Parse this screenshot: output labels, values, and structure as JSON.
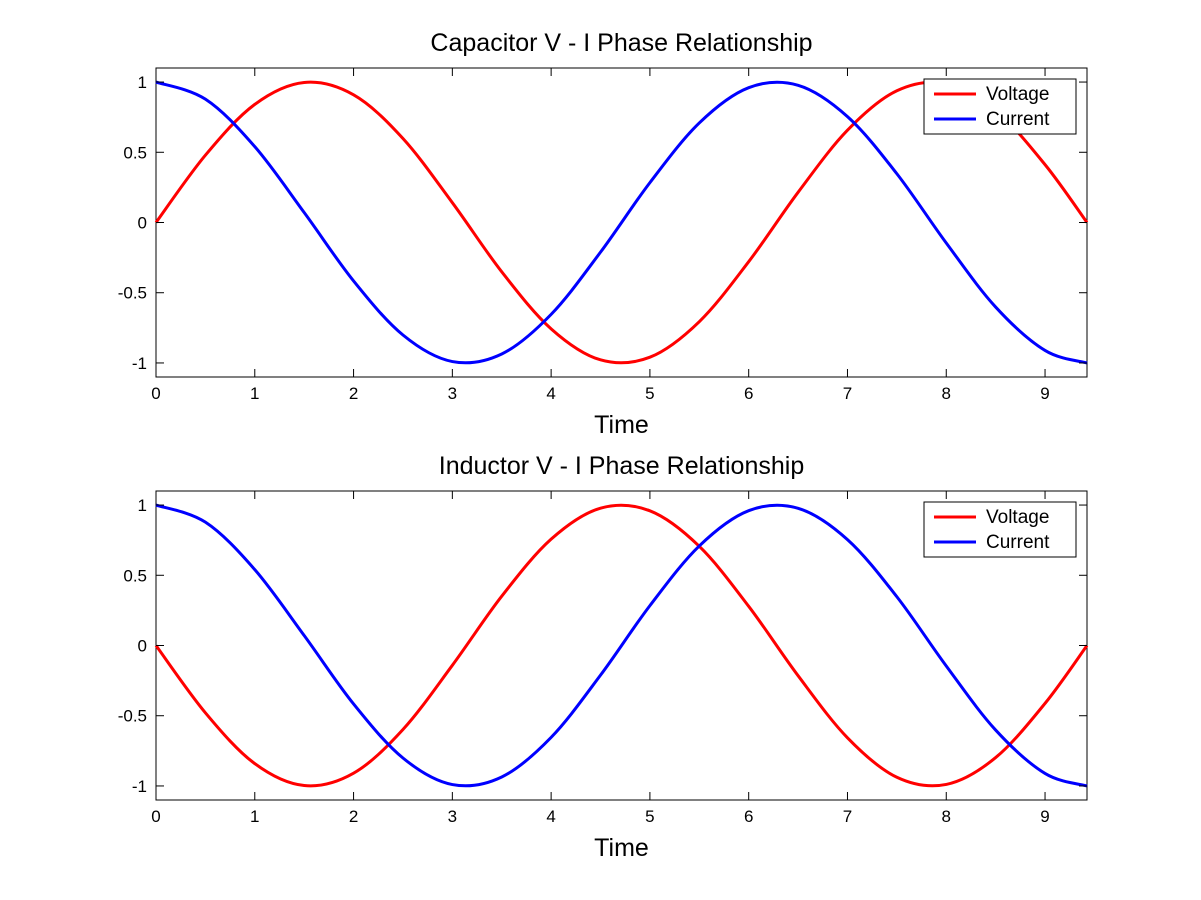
{
  "chart_data": [
    {
      "type": "line",
      "title": "Capacitor V - I Phase Relationship",
      "xlabel": "Time",
      "ylabel": "",
      "xlim": [
        0,
        9.4248
      ],
      "ylim": [
        -1.1,
        1.1
      ],
      "xticks": [
        0,
        1,
        2,
        3,
        4,
        5,
        6,
        7,
        8,
        9
      ],
      "yticks": [
        -1,
        -0.5,
        0,
        0.5,
        1
      ],
      "ytick_labels": [
        "-1",
        "-0.5",
        "0",
        "0.5",
        "1"
      ],
      "grid": false,
      "legend_position": "top-right",
      "x": [
        0,
        0.5,
        1,
        1.5,
        2,
        2.5,
        3,
        3.5,
        4,
        4.5,
        5,
        5.5,
        6,
        6.5,
        7,
        7.5,
        8,
        8.5,
        9,
        9.4248
      ],
      "series": [
        {
          "name": "Voltage",
          "color": "#ff0000",
          "values": [
            0,
            0.479,
            0.841,
            0.997,
            0.909,
            0.598,
            0.141,
            -0.351,
            -0.757,
            -0.978,
            -0.959,
            -0.706,
            -0.279,
            0.215,
            0.657,
            0.938,
            0.989,
            0.798,
            0.412,
            0
          ]
        },
        {
          "name": "Current",
          "color": "#0000ff",
          "values": [
            1,
            0.878,
            0.54,
            0.071,
            -0.416,
            -0.801,
            -0.99,
            -0.936,
            -0.654,
            -0.211,
            0.284,
            0.709,
            0.96,
            0.977,
            0.754,
            0.347,
            -0.146,
            -0.602,
            -0.911,
            -1
          ]
        }
      ]
    },
    {
      "type": "line",
      "title": "Inductor V - I Phase Relationship",
      "xlabel": "Time",
      "ylabel": "",
      "xlim": [
        0,
        9.4248
      ],
      "ylim": [
        -1.1,
        1.1
      ],
      "xticks": [
        0,
        1,
        2,
        3,
        4,
        5,
        6,
        7,
        8,
        9
      ],
      "yticks": [
        -1,
        -0.5,
        0,
        0.5,
        1
      ],
      "ytick_labels": [
        "-1",
        "-0.5",
        "0",
        "0.5",
        "1"
      ],
      "grid": false,
      "legend_position": "top-right",
      "x": [
        0,
        0.5,
        1,
        1.5,
        2,
        2.5,
        3,
        3.5,
        4,
        4.5,
        5,
        5.5,
        6,
        6.5,
        7,
        7.5,
        8,
        8.5,
        9,
        9.4248
      ],
      "series": [
        {
          "name": "Voltage",
          "color": "#ff0000",
          "values": [
            0,
            -0.479,
            -0.841,
            -0.997,
            -0.909,
            -0.598,
            -0.141,
            0.351,
            0.757,
            0.978,
            0.959,
            0.706,
            0.279,
            -0.215,
            -0.657,
            -0.938,
            -0.989,
            -0.798,
            -0.412,
            0
          ]
        },
        {
          "name": "Current",
          "color": "#0000ff",
          "values": [
            1,
            0.878,
            0.54,
            0.071,
            -0.416,
            -0.801,
            -0.99,
            -0.936,
            -0.654,
            -0.211,
            0.284,
            0.709,
            0.96,
            0.977,
            0.754,
            0.347,
            -0.146,
            -0.602,
            -0.911,
            -1
          ]
        }
      ]
    }
  ]
}
